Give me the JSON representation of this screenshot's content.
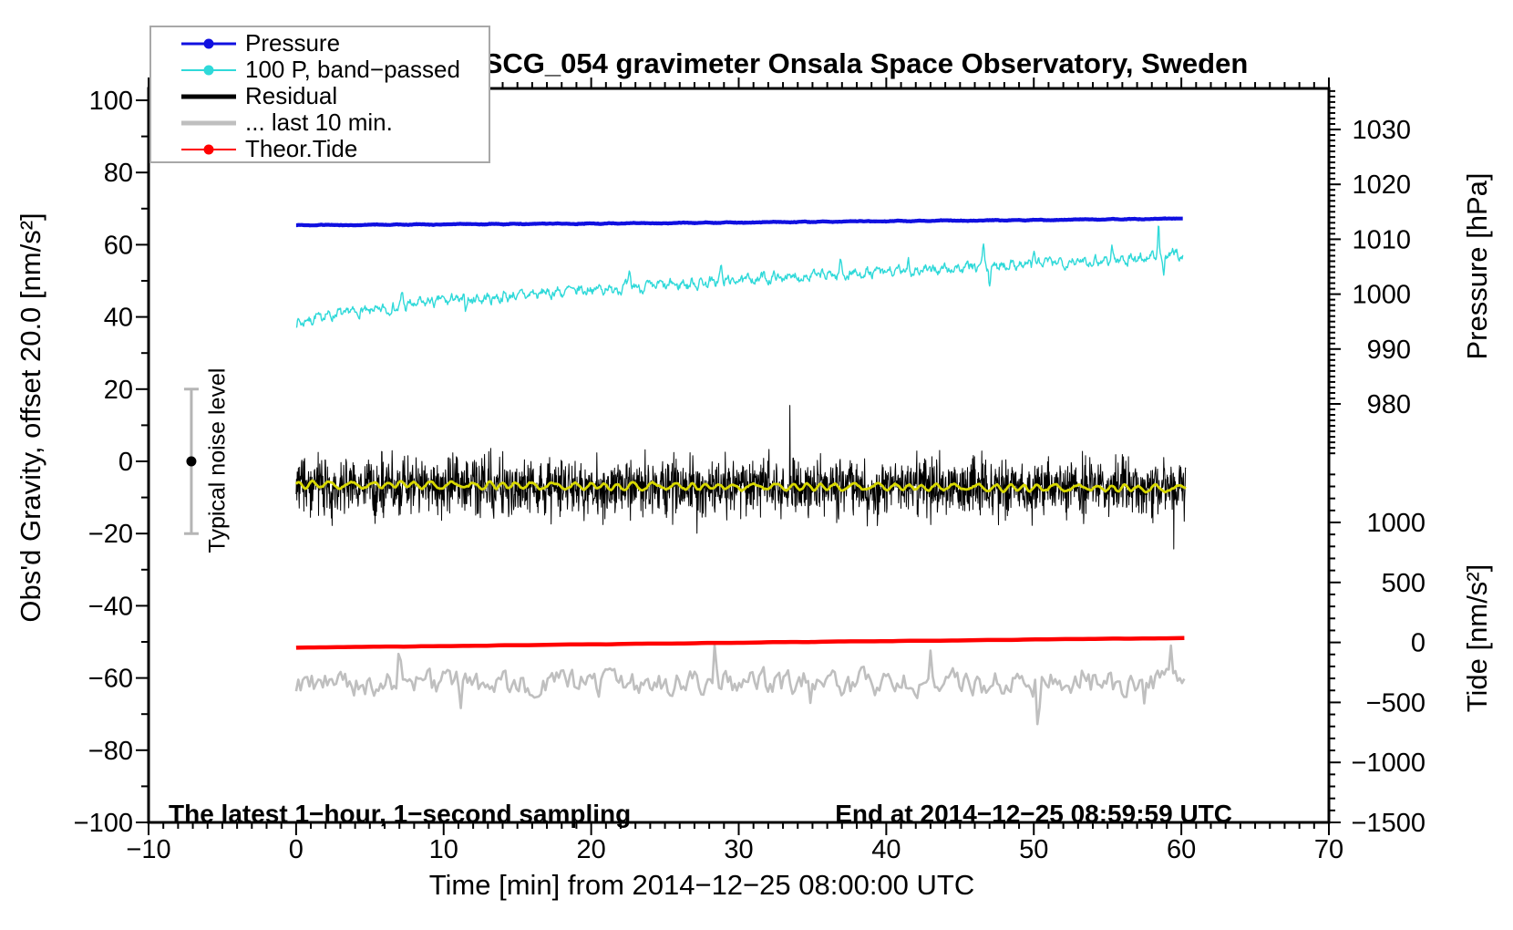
{
  "title": "SCG_054 gravimeter Onsala Space Observatory, Sweden",
  "legend": {
    "items": [
      {
        "label": "Pressure",
        "color": "#1010e0",
        "marker": true,
        "line_width": 3
      },
      {
        "label": "100 P, band−passed",
        "color": "#2fd9d9",
        "marker": true,
        "line_width": 2
      },
      {
        "label": "Residual",
        "color": "#000000",
        "marker": false,
        "line_width": 5
      },
      {
        "label": "... last 10 min.",
        "color": "#bfbfbf",
        "marker": false,
        "line_width": 5
      },
      {
        "label": "Theor.Tide",
        "color": "#ff0000",
        "marker": true,
        "line_width": 2
      }
    ]
  },
  "annotations": {
    "sampling_note": "The latest 1−hour, 1−second sampling",
    "end_note": "End at 2014−12−25 08:59:59 UTC",
    "noise_bar_label": "Typical noise level"
  },
  "chart_data": {
    "type": "line",
    "title": "SCG_054 gravimeter Onsala Space Observatory, Sweden",
    "x_axis": {
      "title": "Time [min] from 2014−12−25 08:00:00 UTC",
      "range": [
        -10,
        70
      ],
      "minor_step": 1,
      "major_ticks": [
        {
          "v": -10,
          "label": "−10"
        },
        {
          "v": 0,
          "label": "0"
        },
        {
          "v": 10,
          "label": "10"
        },
        {
          "v": 20,
          "label": "20"
        },
        {
          "v": 30,
          "label": "30"
        },
        {
          "v": 40,
          "label": "40"
        },
        {
          "v": 50,
          "label": "50"
        },
        {
          "v": 60,
          "label": "60"
        },
        {
          "v": 70,
          "label": "70"
        }
      ]
    },
    "left_axis": {
      "title": "Obs'd Gravity, offset 20.0 [nm/s²]",
      "range": [
        -100,
        100
      ],
      "minor_step": 10,
      "major_ticks": [
        {
          "v": 100,
          "label": "100"
        },
        {
          "v": 80,
          "label": "80"
        },
        {
          "v": 60,
          "label": "60"
        },
        {
          "v": 40,
          "label": "40"
        },
        {
          "v": 20,
          "label": "20"
        },
        {
          "v": 0,
          "label": "0"
        },
        {
          "v": -20,
          "label": "−20"
        },
        {
          "v": -40,
          "label": "−40"
        },
        {
          "v": -60,
          "label": "−60"
        },
        {
          "v": -80,
          "label": "−80"
        },
        {
          "v": -100,
          "label": "−100"
        }
      ]
    },
    "pressure_axis": {
      "title": "Pressure [hPa]",
      "minor_step": 1,
      "minor_range": [
        971,
        1037
      ],
      "major_ticks": [
        {
          "v": 1030,
          "label": "1030"
        },
        {
          "v": 1020,
          "label": "1020"
        },
        {
          "v": 1010,
          "label": "1010"
        },
        {
          "v": 1000,
          "label": "1000"
        },
        {
          "v": 990,
          "label": "990"
        },
        {
          "v": 980,
          "label": "980"
        }
      ]
    },
    "tide_axis": {
      "title": "Tide [nm/s²]",
      "minor_step": 100,
      "minor_range": [
        -1500,
        1400
      ],
      "major_ticks": [
        {
          "v": 1000,
          "label": "1000"
        },
        {
          "v": 500,
          "label": "500"
        },
        {
          "v": 0,
          "label": "0"
        },
        {
          "v": -500,
          "label": "−500"
        },
        {
          "v": -1000,
          "label": "−1000"
        },
        {
          "v": -1500,
          "label": "−1500"
        }
      ]
    },
    "error_bar": {
      "x": -7.1,
      "center": 0,
      "half_range": 20,
      "label": "Typical noise level"
    },
    "series": [
      {
        "id": "band_passed_pressure",
        "legend": "100 P, band−passed",
        "axis": "left",
        "color": "#2fd9d9",
        "width": 1.4,
        "n": 1300,
        "t_end": 60.1,
        "seed": 7,
        "anchors": [
          [
            0,
            38.2
          ],
          [
            2,
            40.5
          ],
          [
            4,
            41.2
          ],
          [
            6,
            42.0
          ],
          [
            8,
            43.5
          ],
          [
            10,
            44.6
          ],
          [
            13,
            45.2
          ],
          [
            16,
            46.3
          ],
          [
            20,
            47.6
          ],
          [
            24,
            48.4
          ],
          [
            28,
            49.6
          ],
          [
            32,
            50.8
          ],
          [
            36,
            51.6
          ],
          [
            40,
            52.4
          ],
          [
            44,
            53.2
          ],
          [
            48,
            54.4
          ],
          [
            52,
            55.3
          ],
          [
            56,
            55.9
          ],
          [
            60.1,
            57.5
          ]
        ],
        "walk": {
          "persist": 0.55,
          "sd": 1.0
        },
        "ripple": {
          "amp": 0.7,
          "freq": 9
        },
        "spikes": [
          [
            7.2,
            3.2,
            0.1
          ],
          [
            11.5,
            -3.6,
            0.08
          ],
          [
            22.6,
            3.8,
            0.1
          ],
          [
            28.8,
            4.2,
            0.09
          ],
          [
            36.9,
            3.4,
            0.09
          ],
          [
            41.5,
            3.2,
            0.08
          ],
          [
            46.6,
            5.5,
            0.09
          ],
          [
            47.0,
            -5.5,
            0.09
          ],
          [
            50.0,
            3.5,
            0.08
          ],
          [
            55.3,
            3.4,
            0.08
          ],
          [
            58.45,
            9.0,
            0.07
          ],
          [
            58.8,
            -6.0,
            0.09
          ]
        ]
      },
      {
        "id": "pressure",
        "legend": "Pressure",
        "axis": "pressure",
        "color": "#1010e0",
        "width": 4.2,
        "n": 900,
        "t_end": 60.1,
        "seed": 5,
        "anchors": [
          [
            0,
            1012.55
          ],
          [
            10,
            1012.72
          ],
          [
            20,
            1012.85
          ],
          [
            30,
            1013.05
          ],
          [
            40,
            1013.3
          ],
          [
            50,
            1013.5
          ],
          [
            60.1,
            1013.75
          ]
        ],
        "ripple": {
          "amp": 0.05,
          "freq": 3
        },
        "noise": {
          "amp": 0.05
        }
      },
      {
        "id": "residual",
        "legend": "Residual",
        "axis": "left",
        "color": "#000000",
        "width": 1,
        "n": 2300,
        "t_end": 60.3,
        "seed": 3,
        "anchors": [
          [
            0,
            -6.8
          ],
          [
            30,
            -7.1
          ],
          [
            60.3,
            -7.4
          ]
        ],
        "noise": {
          "amp": 8,
          "tail_p": 0.005,
          "tail_mult": 2.3
        }
      },
      {
        "id": "residual_smoothed",
        "legend": "",
        "axis": "left",
        "color": "#d8d800",
        "width": 2.8,
        "n": 600,
        "t_end": 60.3,
        "seed": 13,
        "anchors": [
          [
            0,
            -6.3
          ],
          [
            20,
            -6.9
          ],
          [
            40,
            -7.1
          ],
          [
            60.3,
            -7.5
          ]
        ],
        "walk": {
          "persist": 0.6,
          "sd": 0.25
        },
        "ripple": {
          "amp": 0.8,
          "freq": 5.5
        }
      },
      {
        "id": "residual_last_10min",
        "legend": "... last 10 min.",
        "axis": "left",
        "color": "#bfbfbf",
        "width": 2.6,
        "n": 400,
        "t_end": 60.2,
        "seed": 9,
        "anchors": [
          [
            0,
            -61.8
          ],
          [
            30,
            -61.3
          ],
          [
            60.2,
            -61.8
          ]
        ],
        "walk": {
          "persist": 0.45,
          "sd": 3.1
        },
        "spikes": [
          [
            7.0,
            13.5,
            0.09
          ],
          [
            11.2,
            -11,
            0.08
          ],
          [
            28.4,
            12,
            0.08
          ],
          [
            34.9,
            -9,
            0.09
          ],
          [
            43,
            7,
            0.08
          ],
          [
            50.3,
            -14.5,
            0.1
          ],
          [
            53.3,
            8.5,
            0.08
          ],
          [
            57.5,
            -9,
            0.08
          ],
          [
            59.3,
            9.5,
            0.07
          ]
        ]
      },
      {
        "id": "theoretical_tide",
        "legend": "Theor.Tide",
        "axis": "tide",
        "color": "#ff0000",
        "width": 4.5,
        "n": 150,
        "t_end": 60.2,
        "seed": 1,
        "anchors": [
          [
            0,
            -44
          ],
          [
            10,
            -30
          ],
          [
            20,
            -16
          ],
          [
            30,
            -2
          ],
          [
            40,
            11
          ],
          [
            50,
            24
          ],
          [
            60.2,
            37
          ]
        ],
        "ripple": {
          "amp": 1.2,
          "freq": 0.5
        }
      }
    ]
  }
}
